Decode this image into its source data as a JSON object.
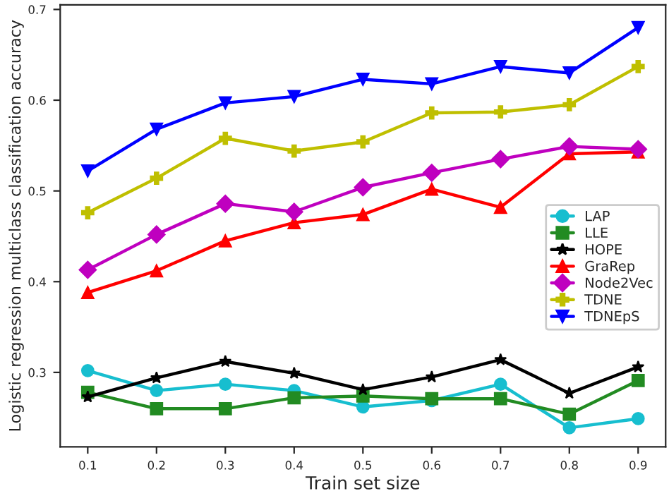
{
  "chart_data": {
    "type": "line",
    "xlabel": "Train set size",
    "ylabel": "Logistic regression multiclass classification accuracy",
    "x": [
      0.1,
      0.2,
      0.3,
      0.4,
      0.5,
      0.6,
      0.7,
      0.8,
      0.9
    ],
    "xlim": [
      0.06,
      0.94
    ],
    "ylim": [
      0.218,
      0.705
    ],
    "xticks": [
      0.1,
      0.2,
      0.3,
      0.4,
      0.5,
      0.6,
      0.7,
      0.8,
      0.9
    ],
    "yticks": [
      0.3,
      0.4,
      0.5,
      0.6,
      0.7
    ],
    "grid": false,
    "legend": "bottom right",
    "series": [
      {
        "name": "LAP",
        "color": "#17becf",
        "marker": "circle",
        "values": [
          0.302,
          0.28,
          0.287,
          0.28,
          0.262,
          0.269,
          0.287,
          0.239,
          0.249
        ]
      },
      {
        "name": "LLE",
        "color": "#228b22",
        "marker": "square",
        "values": [
          0.278,
          0.26,
          0.26,
          0.272,
          0.274,
          0.271,
          0.271,
          0.254,
          0.291
        ]
      },
      {
        "name": "HOPE",
        "color": "#000000",
        "marker": "star",
        "values": [
          0.273,
          0.294,
          0.312,
          0.299,
          0.281,
          0.295,
          0.314,
          0.277,
          0.306
        ]
      },
      {
        "name": "GraRep",
        "color": "#ff0000",
        "marker": "triangle",
        "values": [
          0.388,
          0.412,
          0.445,
          0.465,
          0.474,
          0.502,
          0.482,
          0.541,
          0.543
        ]
      },
      {
        "name": "Node2Vec",
        "color": "#bf00bf",
        "marker": "diamond",
        "values": [
          0.413,
          0.452,
          0.486,
          0.477,
          0.504,
          0.52,
          0.535,
          0.549,
          0.546
        ]
      },
      {
        "name": "TDNE",
        "color": "#bfbf00",
        "marker": "plus",
        "values": [
          0.476,
          0.514,
          0.558,
          0.544,
          0.554,
          0.586,
          0.587,
          0.595,
          0.637
        ]
      },
      {
        "name": "TDNEpS",
        "color": "#0000ff",
        "marker": "triangle_down",
        "values": [
          0.522,
          0.568,
          0.597,
          0.604,
          0.623,
          0.618,
          0.637,
          0.63,
          0.68
        ]
      }
    ]
  }
}
